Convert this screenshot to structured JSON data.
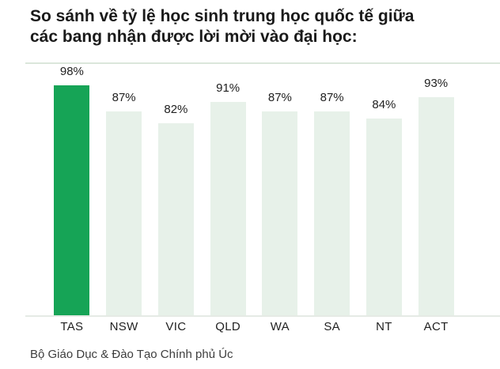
{
  "header": {
    "title_lines": [
      "So sánh về tỷ lệ học sinh trung học quốc tế giữa",
      "các bang nhận được lời mời vào đại học:"
    ]
  },
  "chart_data": {
    "type": "bar",
    "title": "So sánh về tỷ lệ học sinh trung học quốc tế giữa các bang nhận được lời mời vào đại học:",
    "categories": [
      "TAS",
      "NSW",
      "VIC",
      "QLD",
      "WA",
      "SA",
      "NT",
      "ACT"
    ],
    "values": [
      98,
      87,
      82,
      91,
      87,
      87,
      84,
      93
    ],
    "value_labels": [
      "98%",
      "87%",
      "82%",
      "91%",
      "87%",
      "87%",
      "84%",
      "93%"
    ],
    "xlabel": "",
    "ylabel": "",
    "ylim": [
      0,
      100
    ],
    "grid": "off",
    "legend": "none",
    "highlight_category": "TAS",
    "colors": {
      "highlight_bar": "#16A456",
      "default_bar": "#E7F1E9",
      "top_gridline": "#DBE6DB",
      "axis_line": "#E5EAE5"
    }
  },
  "footer": {
    "source": "Bộ Giáo Dục & Đào Tạo Chính phủ Úc"
  }
}
